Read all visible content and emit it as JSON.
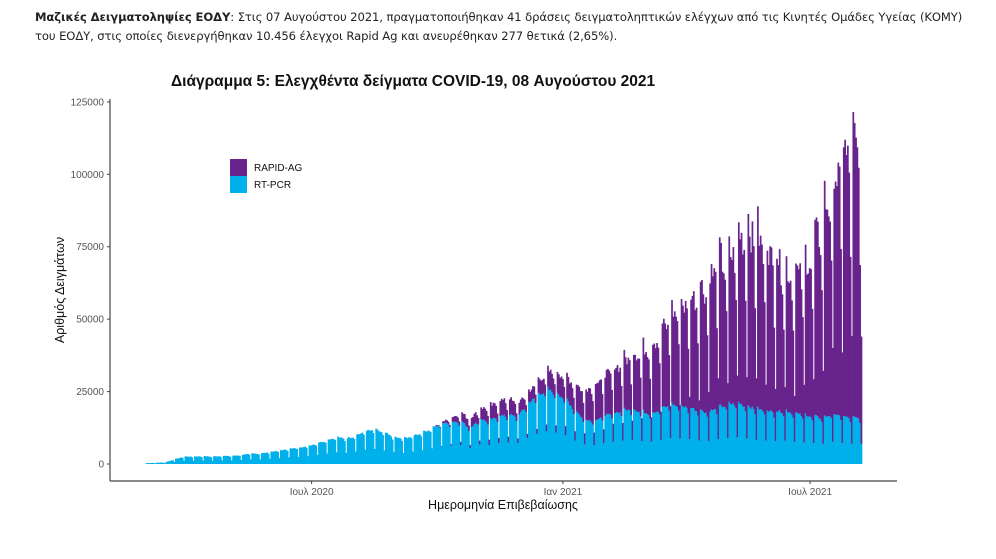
{
  "intro": {
    "bold": "Μαζικές Δειγματοληψίες ΕΟΔΥ",
    "text": ": Στις 07 Αυγούστου 2021, πραγματοποιήθηκαν 41 δράσεις δειγματοληπτικών ελέγχων από τις Κινητές Ομάδες Υγείας (ΚΟΜΥ) του ΕΟΔΥ, στις οποίες διενεργήθηκαν 10.456 έλεγχοι Rapid Ag και ανευρέθηκαν 277 θετικά (2,65%)."
  },
  "chart_data": {
    "type": "bar",
    "stacked": true,
    "title": "Διάγραμμα 5: Ελεγχθέντα δείγματα COVID-19, 08 Αυγούστου 2021",
    "xlabel": "Ημερομηνία Επιβεβαίωσης",
    "ylabel": "Αριθμός Δειγμάτων",
    "ylim": [
      0,
      126000
    ],
    "yticks": [
      0,
      25000,
      50000,
      75000,
      100000,
      125000
    ],
    "ytick_labels": [
      "0",
      "25000",
      "50000",
      "75000",
      "100000",
      "125000"
    ],
    "x_range": [
      "2020-03-01",
      "2021-08-08"
    ],
    "xticks": [
      {
        "date": "2020-07-01",
        "label": "Ιουλ 2020"
      },
      {
        "date": "2021-01-01",
        "label": "Ιαν 2021"
      },
      {
        "date": "2021-07-01",
        "label": "Ιουλ 2021"
      }
    ],
    "legend": {
      "position": "top-left",
      "entries": [
        {
          "name": "RAPID-AG",
          "color": "#68238c"
        },
        {
          "name": "RT-PCR",
          "color": "#00b0eb"
        }
      ]
    },
    "granularity": "daily bars; values below are approximate weekly peaks read from the chart, with a weekday pattern",
    "weekday_factor": [
      0.35,
      1.0,
      0.95,
      0.92,
      0.9,
      0.85,
      0.6
    ],
    "series": [
      {
        "name": "RT-PCR",
        "color": "#00b0eb",
        "weekly_peak": [
          300,
          400,
          500,
          1500,
          2500,
          2500,
          2600,
          2500,
          2700,
          2700,
          3000,
          3500,
          3500,
          4000,
          4500,
          5000,
          5500,
          6000,
          7000,
          8000,
          9000,
          8500,
          9500,
          11000,
          11500,
          10500,
          9000,
          8500,
          9500,
          10500,
          12000,
          13500,
          14000,
          14500,
          12000,
          15000,
          14500,
          16000,
          16500,
          16000,
          20000,
          23000,
          25000,
          24000,
          22000,
          18000,
          15000,
          14500,
          16000,
          17000,
          18000,
          18500,
          17500,
          17000,
          18500,
          20000,
          19500,
          19000,
          18000,
          17500,
          19000,
          20000,
          20500,
          19500,
          18500,
          18000,
          17500,
          18000,
          17000,
          16500,
          16000,
          15500,
          17000,
          16000,
          15500
        ]
      },
      {
        "name": "RAPID-AG",
        "color": "#68238c",
        "weekly_peak": [
          0,
          0,
          0,
          0,
          0,
          0,
          0,
          0,
          0,
          0,
          0,
          0,
          0,
          0,
          0,
          0,
          0,
          0,
          0,
          0,
          0,
          0,
          0,
          0,
          0,
          0,
          0,
          0,
          0,
          0,
          0,
          500,
          1500,
          3000,
          3500,
          4000,
          5000,
          5500,
          6000,
          4500,
          4000,
          5000,
          6500,
          7500,
          8500,
          9500,
          11000,
          13500,
          14500,
          16500,
          18000,
          20000,
          22500,
          25000,
          28000,
          33000,
          36000,
          40000,
          44000,
          48000,
          55000,
          52000,
          60000,
          66000,
          64000,
          60000,
          57000,
          52000,
          50000,
          55000,
          62000,
          75000,
          85000,
          95000,
          100000
        ]
      }
    ]
  }
}
